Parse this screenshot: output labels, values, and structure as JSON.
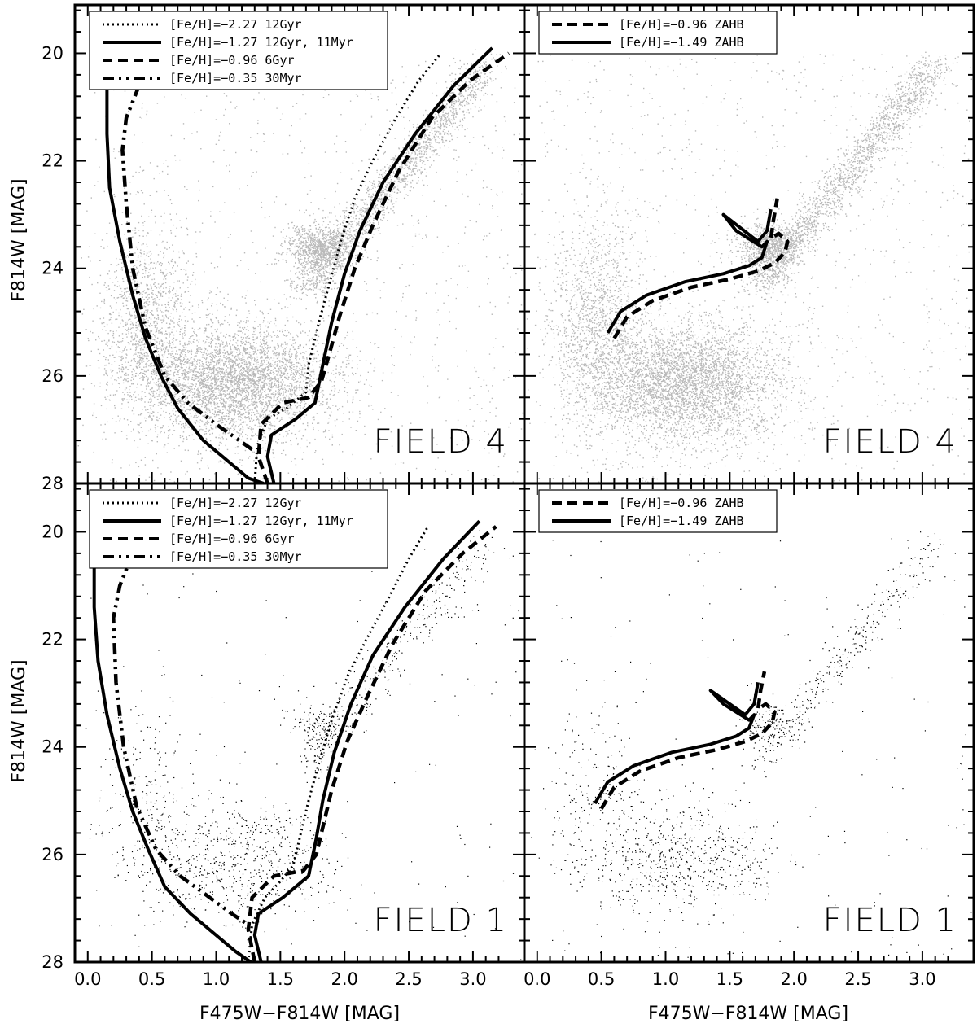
{
  "x_axis": {
    "label": "F475W−F814W [MAG]",
    "range": [
      -0.1,
      3.4
    ],
    "ticks": [
      "0.0",
      "0.5",
      "1.0",
      "1.5",
      "2.0",
      "2.5",
      "3.0"
    ]
  },
  "y_axis": {
    "label": "F814W [MAG]",
    "range": [
      28.0,
      19.1
    ],
    "ticks": [
      "20",
      "22",
      "24",
      "26",
      "28"
    ]
  },
  "chart_data": [
    {
      "type": "scatter",
      "panel": "top-left",
      "field_label": "FIELD 4",
      "point_color": "#b8b8b8",
      "legend": {
        "placement": "top-left",
        "entries": [
          {
            "label": "[Fe/H]=−2.27 12Gyr",
            "style": "dotted"
          },
          {
            "label": "[Fe/H]=−1.27 12Gyr, 11Myr",
            "style": "solid"
          },
          {
            "label": "[Fe/H]=−0.96 6Gyr",
            "style": "dashed"
          },
          {
            "label": "[Fe/H]=−0.35 30Myr",
            "style": "dashdotdot"
          }
        ]
      },
      "series": [
        {
          "name": "[Fe/H]=−2.27 12Gyr",
          "style": "dotted",
          "x": [
            1.3,
            1.32,
            1.4,
            1.55,
            1.7,
            1.72,
            1.8,
            1.88,
            1.97,
            2.08,
            2.22,
            2.4,
            2.58,
            2.75
          ],
          "y": [
            28.0,
            27.3,
            26.8,
            26.6,
            26.3,
            25.8,
            25.0,
            24.3,
            23.5,
            22.7,
            22.0,
            21.2,
            20.5,
            20.0
          ]
        },
        {
          "name": "[Fe/H]=−1.27 12Gyr, 11Myr",
          "style": "solid",
          "x": [
            1.45,
            1.4,
            1.43,
            1.62,
            1.77,
            1.83,
            1.9,
            2.0,
            2.12,
            2.3,
            2.55,
            2.85,
            3.15
          ],
          "y": [
            28.0,
            27.5,
            27.1,
            26.8,
            26.5,
            25.8,
            25.0,
            24.1,
            23.3,
            22.4,
            21.5,
            20.6,
            19.9
          ]
        },
        {
          "name": "[Fe/H]=−1.27 12Gyr, 11Myr (young)",
          "style": "solid",
          "x": [
            0.15,
            0.15,
            0.17,
            0.25,
            0.35,
            0.45,
            0.57,
            0.7,
            0.9,
            1.1,
            1.25,
            1.37
          ],
          "y": [
            20.45,
            21.5,
            22.5,
            23.5,
            24.5,
            25.3,
            26.0,
            26.6,
            27.2,
            27.6,
            27.9,
            28.0
          ]
        },
        {
          "name": "[Fe/H]=−0.96 6Gyr",
          "style": "dashed",
          "x": [
            1.4,
            1.33,
            1.35,
            1.52,
            1.72,
            1.82,
            1.88,
            1.96,
            2.08,
            2.22,
            2.42,
            2.68,
            2.98,
            3.28
          ],
          "y": [
            28.0,
            27.5,
            26.9,
            26.5,
            26.4,
            26.1,
            25.6,
            24.9,
            24.0,
            23.2,
            22.2,
            21.2,
            20.5,
            20.0
          ]
        },
        {
          "name": "[Fe/H]=−0.35 30Myr",
          "style": "dashdotdot",
          "x": [
            0.4,
            0.3,
            0.27,
            0.3,
            0.35,
            0.45,
            0.6,
            0.78,
            1.0,
            1.18,
            1.3
          ],
          "y": [
            20.6,
            21.2,
            21.8,
            22.8,
            24.0,
            25.1,
            26.0,
            26.5,
            26.9,
            27.2,
            27.4
          ]
        }
      ]
    },
    {
      "type": "scatter",
      "panel": "top-right",
      "field_label": "FIELD 4",
      "point_color": "#b8b8b8",
      "legend": {
        "placement": "top-left",
        "entries": [
          {
            "label": "[Fe/H]=−0.96 ZAHB",
            "style": "dashed"
          },
          {
            "label": "[Fe/H]=−1.49 ZAHB",
            "style": "solid"
          }
        ]
      },
      "series": [
        {
          "name": "[Fe/H]=−0.96 ZAHB",
          "style": "dashed",
          "x": [
            0.6,
            0.7,
            0.9,
            1.2,
            1.5,
            1.72,
            1.85,
            1.93,
            1.95,
            1.88,
            1.82,
            1.84,
            1.87
          ],
          "y": [
            25.3,
            24.9,
            24.6,
            24.35,
            24.2,
            24.05,
            23.9,
            23.7,
            23.5,
            23.35,
            23.45,
            23.1,
            22.7
          ]
        },
        {
          "name": "[Fe/H]=−1.49 ZAHB",
          "style": "solid",
          "x": [
            0.55,
            0.65,
            0.85,
            1.15,
            1.45,
            1.65,
            1.75,
            1.79,
            1.75,
            1.55,
            1.45,
            1.72,
            1.79,
            1.82
          ],
          "y": [
            25.2,
            24.8,
            24.5,
            24.25,
            24.1,
            23.95,
            23.8,
            23.5,
            23.6,
            23.3,
            23.0,
            23.5,
            23.3,
            22.9
          ]
        }
      ]
    },
    {
      "type": "scatter",
      "panel": "bottom-left",
      "field_label": "FIELD 1",
      "point_color": "#000000",
      "legend": {
        "placement": "top-left",
        "entries": [
          {
            "label": "[Fe/H]=−2.27 12Gyr",
            "style": "dotted"
          },
          {
            "label": "[Fe/H]=−1.27 12Gyr, 11Myr",
            "style": "solid"
          },
          {
            "label": "[Fe/H]=−0.96 6Gyr",
            "style": "dashed"
          },
          {
            "label": "[Fe/H]=−0.35 30Myr",
            "style": "dashdotdot"
          }
        ]
      },
      "series": [
        {
          "name": "[Fe/H]=−2.27 12Gyr",
          "style": "dotted",
          "x": [
            1.25,
            1.28,
            1.38,
            1.5,
            1.6,
            1.65,
            1.72,
            1.8,
            1.9,
            2.02,
            2.17,
            2.35,
            2.5,
            2.65
          ],
          "y": [
            28.0,
            27.3,
            26.8,
            26.5,
            26.2,
            25.7,
            25.0,
            24.3,
            23.5,
            22.7,
            22.0,
            21.2,
            20.5,
            19.9
          ]
        },
        {
          "name": "[Fe/H]=−1.27 12Gyr, 11Myr",
          "style": "solid",
          "x": [
            1.35,
            1.3,
            1.33,
            1.52,
            1.72,
            1.78,
            1.83,
            1.92,
            2.05,
            2.22,
            2.47,
            2.77,
            3.05
          ],
          "y": [
            28.0,
            27.5,
            27.1,
            26.8,
            26.4,
            25.7,
            25.0,
            24.1,
            23.2,
            22.3,
            21.4,
            20.5,
            19.8
          ]
        },
        {
          "name": "[Fe/H]=−1.27 12Gyr, 11Myr (young)",
          "style": "solid",
          "x": [
            0.05,
            0.05,
            0.08,
            0.15,
            0.25,
            0.35,
            0.47,
            0.6,
            0.8,
            1.0,
            1.15,
            1.27
          ],
          "y": [
            20.3,
            21.4,
            22.4,
            23.4,
            24.4,
            25.2,
            25.9,
            26.6,
            27.1,
            27.5,
            27.8,
            28.0
          ]
        },
        {
          "name": "[Fe/H]=−0.96 6Gyr",
          "style": "dashed",
          "x": [
            1.3,
            1.25,
            1.28,
            1.45,
            1.68,
            1.78,
            1.83,
            1.9,
            2.02,
            2.17,
            2.37,
            2.63,
            2.92,
            3.18
          ],
          "y": [
            28.0,
            27.4,
            26.8,
            26.4,
            26.3,
            26.0,
            25.5,
            24.8,
            23.9,
            23.1,
            22.1,
            21.1,
            20.4,
            19.9
          ]
        },
        {
          "name": "[Fe/H]=−0.35 30Myr",
          "style": "dashdotdot",
          "x": [
            0.35,
            0.25,
            0.2,
            0.22,
            0.28,
            0.38,
            0.53,
            0.72,
            0.95,
            1.12,
            1.25
          ],
          "y": [
            20.4,
            21.0,
            21.6,
            22.8,
            24.0,
            25.1,
            25.9,
            26.4,
            26.8,
            27.1,
            27.3
          ]
        }
      ]
    },
    {
      "type": "scatter",
      "panel": "bottom-right",
      "field_label": "FIELD 1",
      "point_color": "#000000",
      "legend": {
        "placement": "top-left",
        "entries": [
          {
            "label": "[Fe/H]=−0.96 ZAHB",
            "style": "dashed"
          },
          {
            "label": "[Fe/H]=−1.49 ZAHB",
            "style": "solid"
          }
        ]
      },
      "series": [
        {
          "name": "[Fe/H]=−0.96 ZAHB",
          "style": "dashed",
          "x": [
            0.5,
            0.6,
            0.8,
            1.1,
            1.4,
            1.62,
            1.75,
            1.83,
            1.85,
            1.78,
            1.72,
            1.74,
            1.77
          ],
          "y": [
            25.15,
            24.75,
            24.45,
            24.2,
            24.05,
            23.9,
            23.75,
            23.55,
            23.35,
            23.2,
            23.3,
            22.95,
            22.6
          ]
        },
        {
          "name": "[Fe/H]=−1.49 ZAHB",
          "style": "solid",
          "x": [
            0.45,
            0.55,
            0.75,
            1.05,
            1.35,
            1.55,
            1.65,
            1.69,
            1.65,
            1.45,
            1.35,
            1.62,
            1.69,
            1.72
          ],
          "y": [
            25.05,
            24.65,
            24.35,
            24.1,
            23.95,
            23.8,
            23.65,
            23.4,
            23.5,
            23.2,
            22.95,
            23.4,
            23.2,
            22.8
          ]
        }
      ]
    }
  ]
}
